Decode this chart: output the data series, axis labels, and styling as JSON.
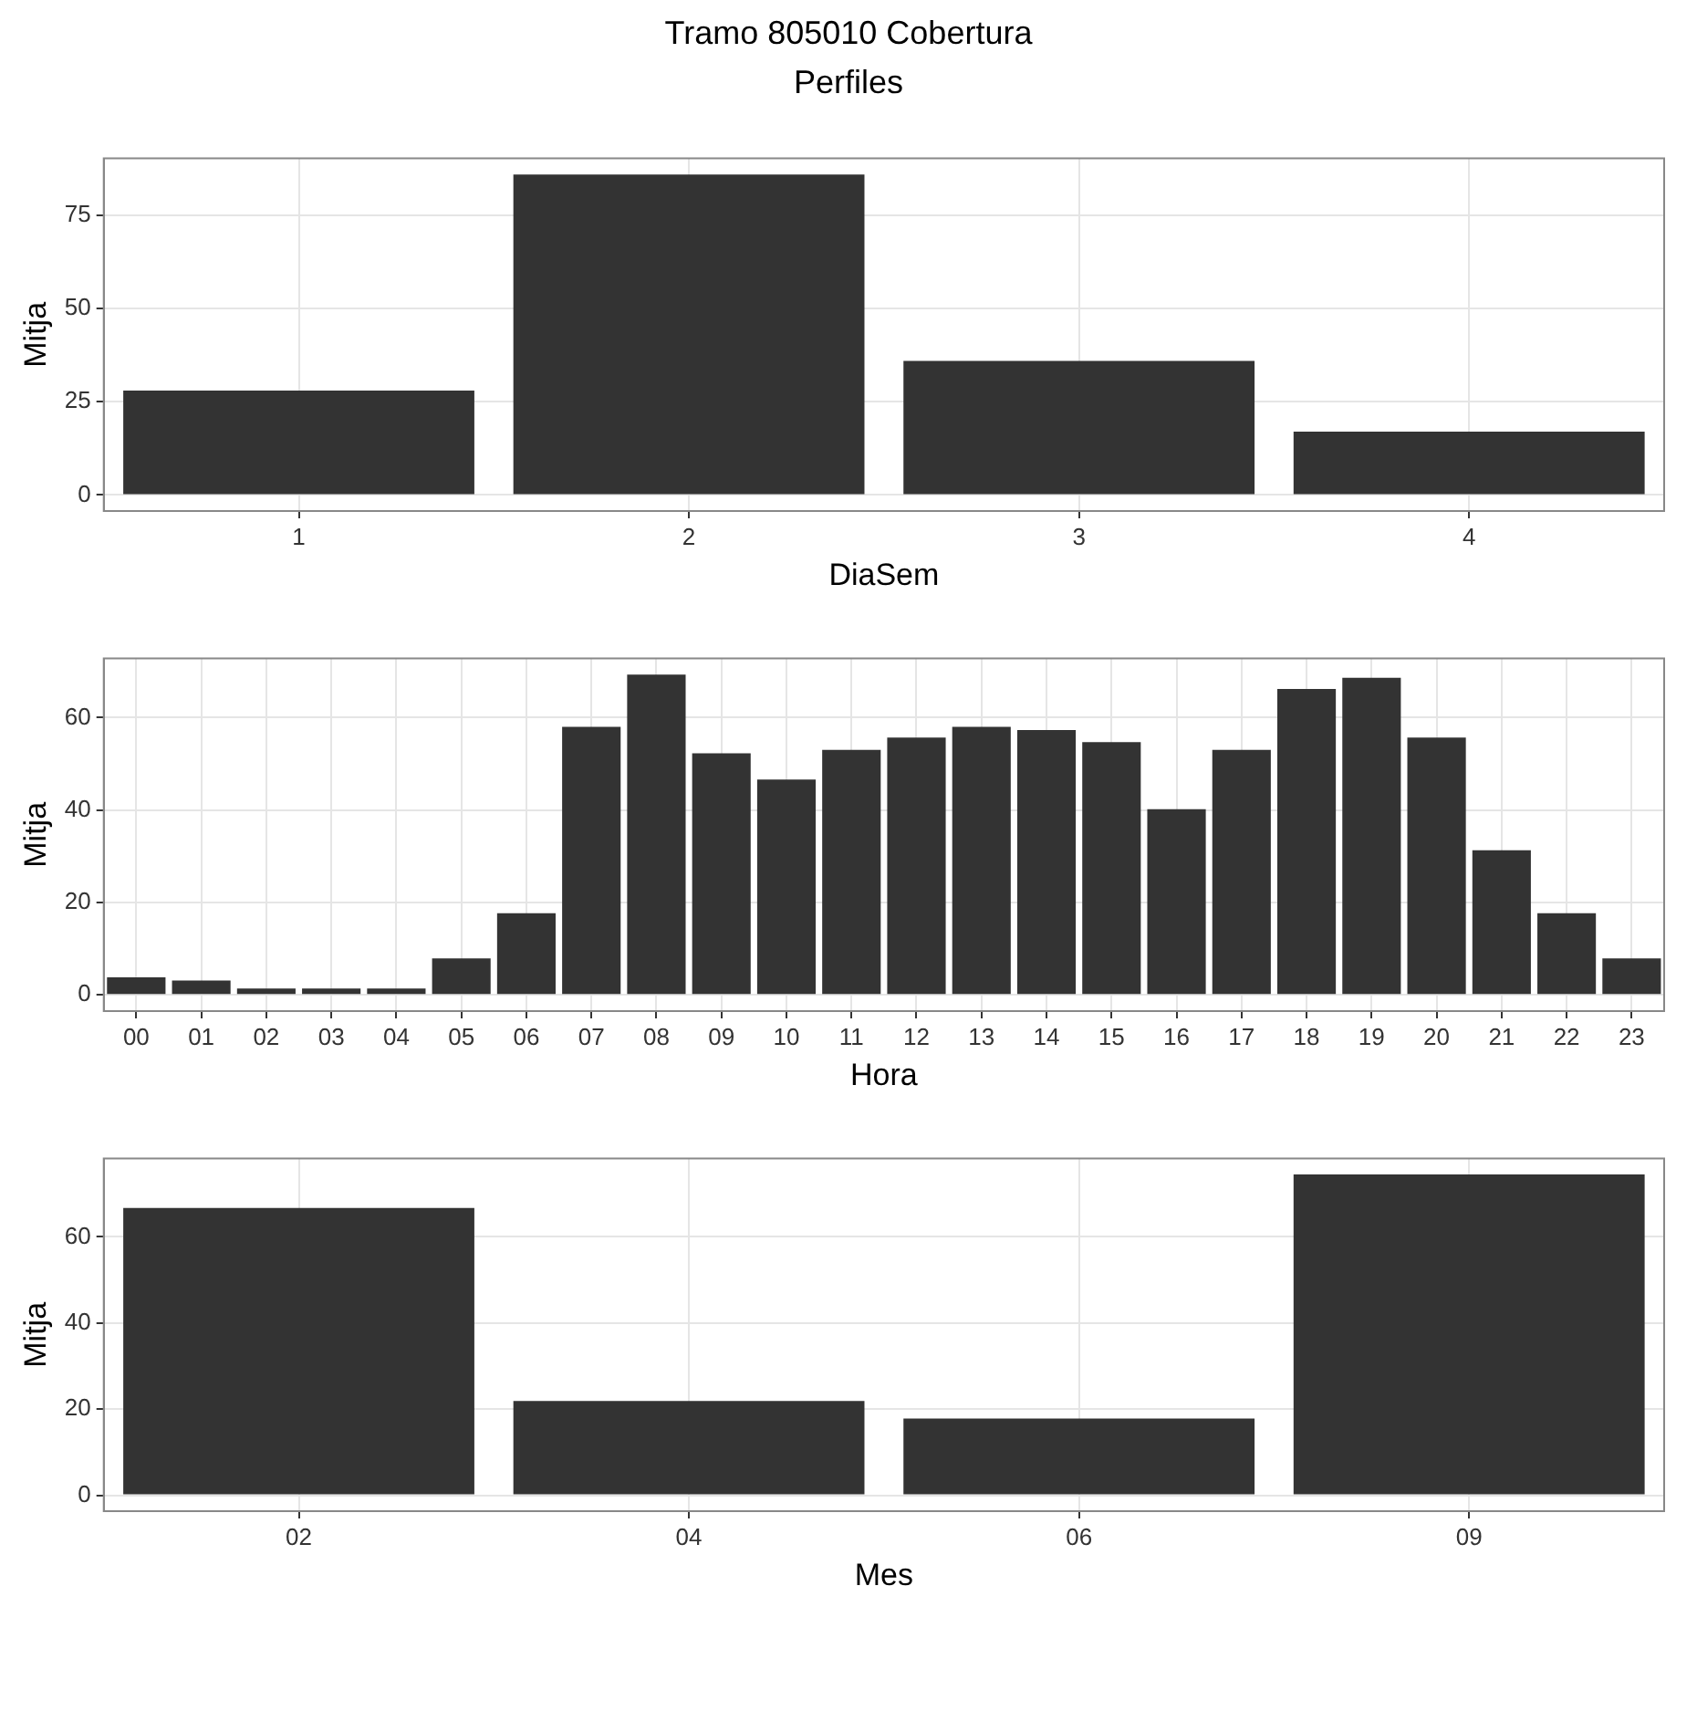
{
  "chart_data": [
    {
      "type": "bar",
      "title": "Tramo  805010  Cobertura",
      "subtitle": "Perfiles",
      "categories": [
        "1",
        "2",
        "3",
        "4"
      ],
      "values": [
        28,
        86,
        36,
        17
      ],
      "color": "#333333",
      "xlabel": "DiaSem",
      "ylabel": "Mitja",
      "ylim": [
        -4.3,
        90.3
      ],
      "yticks": [
        0,
        25,
        50,
        75
      ],
      "grid": true
    },
    {
      "type": "bar",
      "categories": [
        "00",
        "01",
        "02",
        "03",
        "04",
        "05",
        "06",
        "07",
        "08",
        "09",
        "10",
        "11",
        "12",
        "13",
        "14",
        "15",
        "16",
        "17",
        "18",
        "19",
        "20",
        "21",
        "22",
        "23"
      ],
      "values": [
        3.8,
        3.1,
        1.4,
        1.4,
        1.4,
        7.9,
        17.7,
        58,
        69.3,
        52.3,
        46.6,
        53,
        55.7,
        58,
        57.3,
        54.7,
        40.2,
        53,
        66.2,
        68.6,
        55.7,
        31.3,
        17.7,
        7.9
      ],
      "color": "#333333",
      "xlabel": "Hora",
      "ylabel": "Mitja",
      "ylim": [
        -3.5,
        72.8
      ],
      "yticks": [
        0,
        20,
        40,
        60
      ],
      "grid": true
    },
    {
      "type": "bar",
      "categories": [
        "02",
        "04",
        "06",
        "09"
      ],
      "values": [
        66.7,
        21.9,
        17.8,
        74.5
      ],
      "color": "#333333",
      "xlabel": "Mes",
      "ylabel": "Mitja",
      "ylim": [
        -3.7,
        78.2
      ],
      "yticks": [
        0,
        20,
        40,
        60
      ],
      "grid": true
    }
  ]
}
